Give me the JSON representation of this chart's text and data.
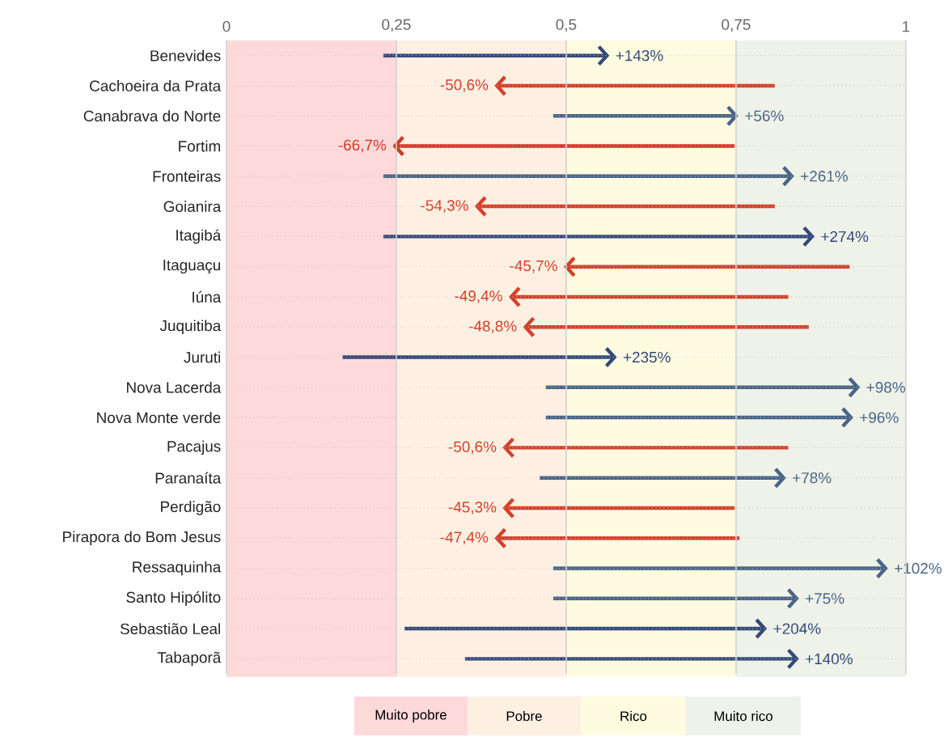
{
  "chart_data": {
    "type": "bar",
    "orientation": "horizontal",
    "categories": [
      "Benevides",
      "Cachoeira da Prata",
      "Canabrava do Norte",
      "Fortim",
      "Fronteiras",
      "Goianira",
      "Itagibá",
      "Itaguaçu",
      "Iúna",
      "Juquitiba",
      "Juruti",
      "Nova Lacerda",
      "Nova Monte verde",
      "Pacajus",
      "Paranaíta",
      "Perdigão",
      "Pirapora do Bom Jesus",
      "Ressaquinha",
      "Santo Hipólito",
      "Sebastião Leal",
      "Tabaporã"
    ],
    "base": [
      0.231,
      0.807,
      0.481,
      0.748,
      0.231,
      0.807,
      0.231,
      0.917,
      0.827,
      0.857,
      0.171,
      0.47,
      0.47,
      0.827,
      0.461,
      0.748,
      0.755,
      0.481,
      0.481,
      0.262,
      0.351
    ],
    "values": [
      0.329,
      -0.409,
      0.269,
      -0.5,
      0.601,
      -0.438,
      0.631,
      -0.417,
      -0.408,
      -0.417,
      0.4,
      0.459,
      0.449,
      -0.417,
      0.359,
      -0.338,
      -0.357,
      0.489,
      0.358,
      0.53,
      0.488
    ],
    "annotations": [
      {
        "text": "+143%",
        "x": 0.56,
        "y": "Benevides"
      },
      {
        "text": "-50,6%",
        "x": 0.398,
        "y": "Cachoeira da Prata"
      },
      {
        "text": "+56%",
        "x": 0.75,
        "y": "Canabrava do Norte"
      },
      {
        "text": "-66,7%",
        "x": 0.248,
        "y": "Fortim"
      },
      {
        "text": "+261%",
        "x": 0.832,
        "y": "Fronteiras"
      },
      {
        "text": "-54,3%",
        "x": 0.369,
        "y": "Goianira"
      },
      {
        "text": "+274%",
        "x": 0.862,
        "y": "Itagibá"
      },
      {
        "text": "-45,7%",
        "x": 0.5,
        "y": "Itaguaçu"
      },
      {
        "text": "-49,4%",
        "x": 0.419,
        "y": "Iúna"
      },
      {
        "text": "-48,8%",
        "x": 0.44,
        "y": "Juquitiba"
      },
      {
        "text": "+235%",
        "x": 0.571,
        "y": "Juruti"
      },
      {
        "text": "+98%",
        "x": 0.929,
        "y": "Nova Lacerda"
      },
      {
        "text": "+96%",
        "x": 0.919,
        "y": "Nova Monte verde"
      },
      {
        "text": "-50,6%",
        "x": 0.41,
        "y": "Pacajus"
      },
      {
        "text": "+78%",
        "x": 0.82,
        "y": "Paranaíta"
      },
      {
        "text": "-45,3%",
        "x": 0.41,
        "y": "Perdigão"
      },
      {
        "text": "-47,4%",
        "x": 0.398,
        "y": "Pirapora do Bom Jesus"
      },
      {
        "text": "+102%",
        "x": 0.97,
        "y": "Ressaquinha"
      },
      {
        "text": "+75%",
        "x": 0.839,
        "y": "Santo Hipólito"
      },
      {
        "text": "+204%",
        "x": 0.792,
        "y": "Sebastião Leal"
      },
      {
        "text": "+140%",
        "x": 0.839,
        "y": "Tabaporã"
      }
    ],
    "colors": [
      "#34497a",
      "#d5402a",
      "#4a6488",
      "#d0392a",
      "#4a6488",
      "#d5402a",
      "#34497a",
      "#d5402a",
      "#d5402a",
      "#d5402a",
      "#34497a",
      "#4a6488",
      "#4a6488",
      "#d5402a",
      "#4a6488",
      "#d5402a",
      "#d5402a",
      "#4a6488",
      "#4a6488",
      "#34497a",
      "#34497a"
    ],
    "xlim": [
      0,
      1
    ],
    "xticks": [
      0,
      {
        "value": 0.25,
        "label": "0,25"
      },
      {
        "value": 0.5,
        "label": "0,5"
      },
      {
        "value": 0.75,
        "label": "0,75"
      },
      1
    ],
    "grid": true,
    "bands": [
      {
        "axis": "x",
        "from": 0,
        "to": 0.25,
        "label": "Muito pobre",
        "color": "#fdd9da"
      },
      {
        "axis": "x",
        "from": 0.25,
        "to": 0.5,
        "label": "Pobre",
        "color": "#fdf0e2"
      },
      {
        "axis": "x",
        "from": 0.5,
        "to": 0.75,
        "label": "Rico",
        "color": "#fefbe0"
      },
      {
        "axis": "x",
        "from": 0.75,
        "to": 1,
        "label": "Muito rico",
        "color": "#eef2e8"
      }
    ]
  }
}
